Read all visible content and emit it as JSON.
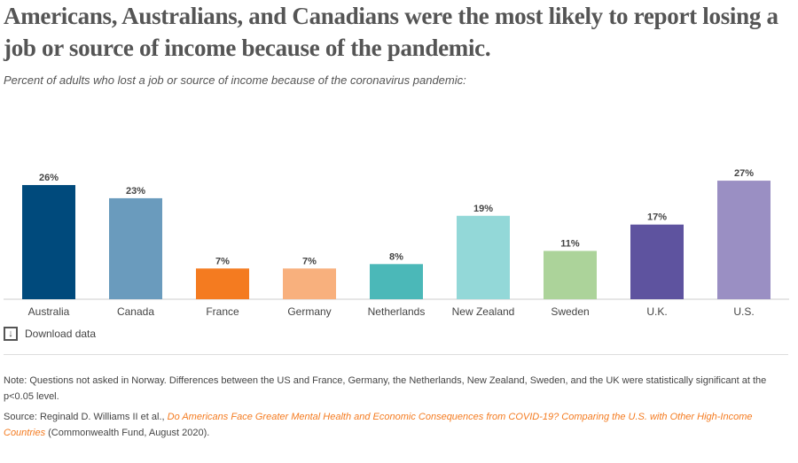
{
  "title": "Americans, Australians, and Canadians were the most likely to report losing a job or source of income because of the pandemic.",
  "subtitle": "Percent of adults who lost a job or source of income because of the coronavirus pandemic:",
  "download_label": "Download data",
  "download_icon": "download-icon",
  "note": "Note: Questions not asked in Norway. Differences between the US and France, Germany, the Netherlands, New Zealand, Sweden, and the UK were statistically significant at the p<0.05 level.",
  "source": {
    "prefix": "Source: Reginald D. Williams II et al., ",
    "link": "Do Americans Face Greater Mental Health and Economic Consequences from COVID-19? Comparing the U.S. with Other High-Income Countries",
    "suffix": " (Commonwealth Fund, August 2020)."
  },
  "chart_data": {
    "type": "bar",
    "categories": [
      "Australia",
      "Canada",
      "France",
      "Germany",
      "Netherlands",
      "New Zealand",
      "Sweden",
      "U.K.",
      "U.S."
    ],
    "values": [
      26,
      23,
      7,
      7,
      8,
      19,
      11,
      17,
      27
    ],
    "labels": [
      "26%",
      "23%",
      "7%",
      "7%",
      "8%",
      "19%",
      "11%",
      "17%",
      "27%"
    ],
    "colors": [
      "#004a7c",
      "#6a9bbd",
      "#f47b20",
      "#f8b07d",
      "#4bb8b8",
      "#93d8d8",
      "#acd39a",
      "#5e539f",
      "#9a8fc3"
    ],
    "unit": "%",
    "ylim": [
      0,
      27
    ],
    "grid": false
  }
}
